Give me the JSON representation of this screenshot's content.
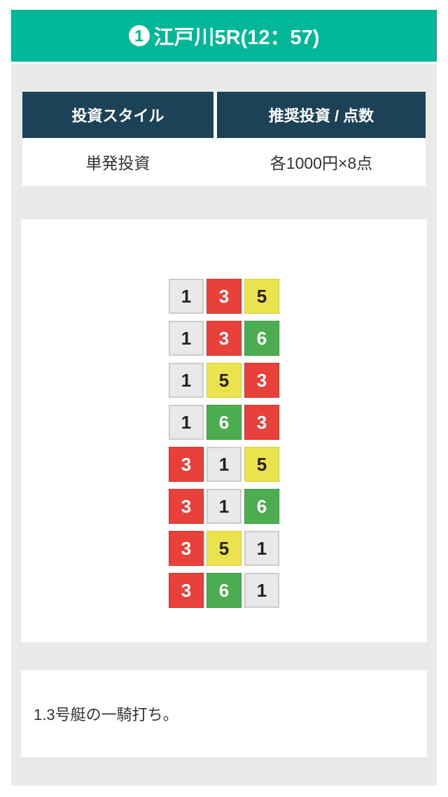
{
  "header": {
    "badge_number": "1",
    "title": "江戸川5R(12：57)",
    "bar_color": "#00b797"
  },
  "invest_table": {
    "headers": [
      "投資スタイル",
      "推奨投資 / 点数"
    ],
    "row": [
      "単発投資",
      "各1000円×8点"
    ],
    "header_bg": "#1c4257"
  },
  "bet_grid": {
    "rows": [
      [
        1,
        3,
        5
      ],
      [
        1,
        3,
        6
      ],
      [
        1,
        5,
        3
      ],
      [
        1,
        6,
        3
      ],
      [
        3,
        1,
        5
      ],
      [
        3,
        1,
        6
      ],
      [
        3,
        5,
        1
      ],
      [
        3,
        6,
        1
      ]
    ],
    "number_styles": {
      "1": {
        "bg": "#e9e9e9",
        "fg": "#222222",
        "border": "2px solid #cccccc"
      },
      "3": {
        "bg": "#e8413c",
        "fg": "#ffffff",
        "border": "1px solid #d4362f"
      },
      "5": {
        "bg": "#ebe34e",
        "fg": "#222222",
        "border": "1px solid #d6cf40"
      },
      "6": {
        "bg": "#4bad4f",
        "fg": "#ffffff",
        "border": "1px solid #3f9c43"
      }
    }
  },
  "comment": {
    "text": "1.3号艇の一騎打ち。"
  },
  "colors": {
    "section_bg": "#e8ebe8",
    "page_bg": "#ffffff"
  }
}
